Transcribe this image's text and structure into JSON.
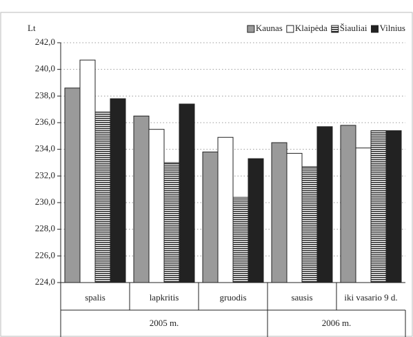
{
  "chart_data": {
    "type": "bar",
    "y_label": "Lt",
    "categories": [
      "spalis",
      "lapkritis",
      "gruodis",
      "sausis",
      "iki vasario 9 d."
    ],
    "groups": [
      {
        "label": "2005 m.",
        "span": 3
      },
      {
        "label": "2006 m.",
        "span": 2
      }
    ],
    "series": [
      {
        "name": "Kaunas",
        "color": "#9a9a9a",
        "values": [
          238.6,
          236.5,
          233.8,
          234.5,
          235.8
        ]
      },
      {
        "name": "Klaipėda",
        "color": "#ffffff",
        "values": [
          240.7,
          235.5,
          234.9,
          233.7,
          234.1
        ]
      },
      {
        "name": "Šiauliai",
        "color": "#222222",
        "pattern": "horizontal-stripes",
        "values": [
          236.8,
          233.0,
          230.4,
          232.7,
          235.4
        ]
      },
      {
        "name": "Vilnius",
        "color": "#222222",
        "values": [
          237.8,
          237.4,
          233.3,
          235.7,
          235.4
        ]
      }
    ],
    "ylim": [
      224,
      242
    ],
    "yticks": [
      {
        "value": 224,
        "label": "224,0"
      },
      {
        "value": 226,
        "label": "226,0"
      },
      {
        "value": 228,
        "label": "228,0"
      },
      {
        "value": 230,
        "label": "230,0"
      },
      {
        "value": 232,
        "label": "232,0"
      },
      {
        "value": 234,
        "label": "234,0"
      },
      {
        "value": 236,
        "label": "236,0"
      },
      {
        "value": 238,
        "label": "238,0"
      },
      {
        "value": 240,
        "label": "240,0"
      },
      {
        "value": 242,
        "label": "242,0"
      }
    ],
    "grid": true,
    "legend": "top-right"
  }
}
